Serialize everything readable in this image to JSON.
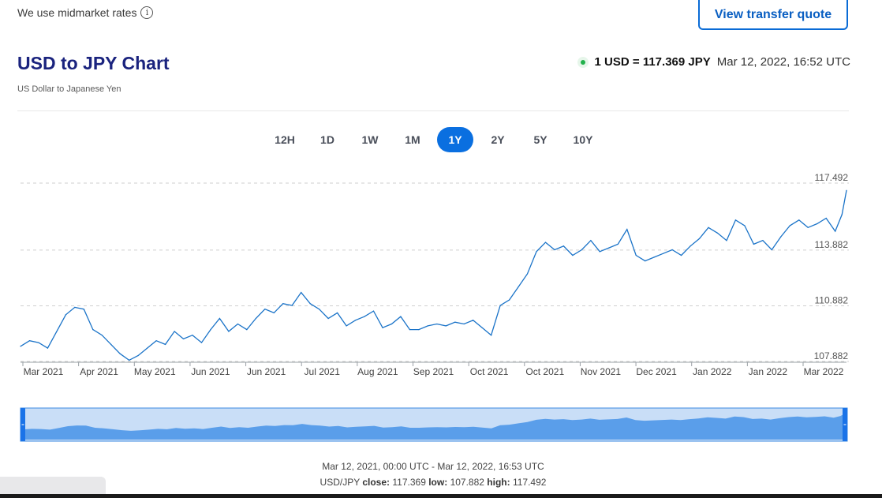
{
  "header": {
    "midmarket_text": "We use midmarket rates",
    "info_icon": "info-icon",
    "quote_button": "View transfer quote"
  },
  "title": "USD to JPY Chart",
  "subtitle": "US Dollar to Japanese Yen",
  "rate": {
    "value": "1 USD = 117.369 JPY",
    "time": "Mar 12, 2022, 16:52 UTC",
    "status_color": "#22b14c"
  },
  "periods": [
    "12H",
    "1D",
    "1W",
    "1M",
    "1Y",
    "2Y",
    "5Y",
    "10Y"
  ],
  "active_period": "1Y",
  "chart_data": {
    "type": "line",
    "title": "USD to JPY Chart",
    "subtitle": "US Dollar to Japanese Yen",
    "x_tick_labels": [
      "Mar 2021",
      "Apr 2021",
      "May 2021",
      "Jun 2021",
      "Jun 2021",
      "Jul 2021",
      "Aug 2021",
      "Sep 2021",
      "Oct 2021",
      "Oct 2021",
      "Nov 2021",
      "Dec 2021",
      "Jan 2022",
      "Jan 2022",
      "Mar 2022"
    ],
    "y_tick_labels": [
      "117.492",
      "113.882",
      "110.882",
      "107.882"
    ],
    "y_ticks": [
      117.492,
      113.882,
      110.882,
      107.882
    ],
    "ylim": [
      107.882,
      117.492
    ],
    "xlim": [
      0,
      365
    ],
    "grid": "horizontal-dashed",
    "line_color": "#1a73c8",
    "series": [
      {
        "x": [
          0,
          4,
          8,
          12,
          16,
          20,
          24,
          28,
          32,
          36,
          40,
          44,
          48,
          52,
          56,
          60,
          64,
          68,
          72,
          76,
          80,
          84,
          88,
          92,
          96,
          100,
          104,
          108,
          112,
          116,
          120,
          124,
          128,
          132,
          136,
          140,
          144,
          148,
          152,
          156,
          160,
          164,
          168,
          172,
          176,
          180,
          184,
          188,
          192,
          196,
          200,
          204,
          208,
          212,
          216,
          220,
          224,
          228,
          232,
          236,
          240,
          244,
          248,
          252,
          256,
          260,
          264,
          268,
          272,
          276,
          280,
          284,
          288,
          292,
          296,
          300,
          304,
          308,
          312,
          316,
          320,
          324,
          328,
          332,
          336,
          340,
          344,
          348,
          352,
          356,
          360,
          363,
          365
        ],
        "values": [
          108.7,
          109.0,
          108.9,
          108.6,
          109.5,
          110.4,
          110.8,
          110.7,
          109.6,
          109.3,
          108.8,
          108.3,
          107.95,
          108.2,
          108.6,
          109.0,
          108.8,
          109.5,
          109.1,
          109.3,
          108.9,
          109.6,
          110.2,
          109.5,
          109.9,
          109.6,
          110.2,
          110.7,
          110.5,
          111.0,
          110.9,
          111.6,
          111.0,
          110.7,
          110.2,
          110.5,
          109.8,
          110.1,
          110.3,
          110.6,
          109.7,
          109.9,
          110.3,
          109.6,
          109.6,
          109.8,
          109.9,
          109.8,
          110.0,
          109.9,
          110.1,
          109.7,
          109.3,
          110.9,
          111.2,
          111.9,
          112.6,
          113.8,
          114.3,
          113.9,
          114.1,
          113.6,
          113.9,
          114.4,
          113.8,
          114.0,
          114.2,
          115.0,
          113.6,
          113.3,
          113.5,
          113.7,
          113.9,
          113.6,
          114.1,
          114.5,
          115.1,
          114.8,
          114.4,
          115.5,
          115.2,
          114.2,
          114.4,
          113.9,
          114.6,
          115.2,
          115.5,
          115.1,
          115.3,
          115.6,
          114.9,
          115.8,
          117.1
        ]
      }
    ]
  },
  "navigator": {
    "fill_color": "#5a9eea",
    "window_color": "#c9def7"
  },
  "footer": {
    "range": "Mar 12, 2021, 00:00 UTC - Mar 12, 2022, 16:53 UTC",
    "pair": "USD/JPY",
    "close_label": "close:",
    "close": "117.369",
    "low_label": "low:",
    "low": "107.882",
    "high_label": "high:",
    "high": "117.492"
  }
}
